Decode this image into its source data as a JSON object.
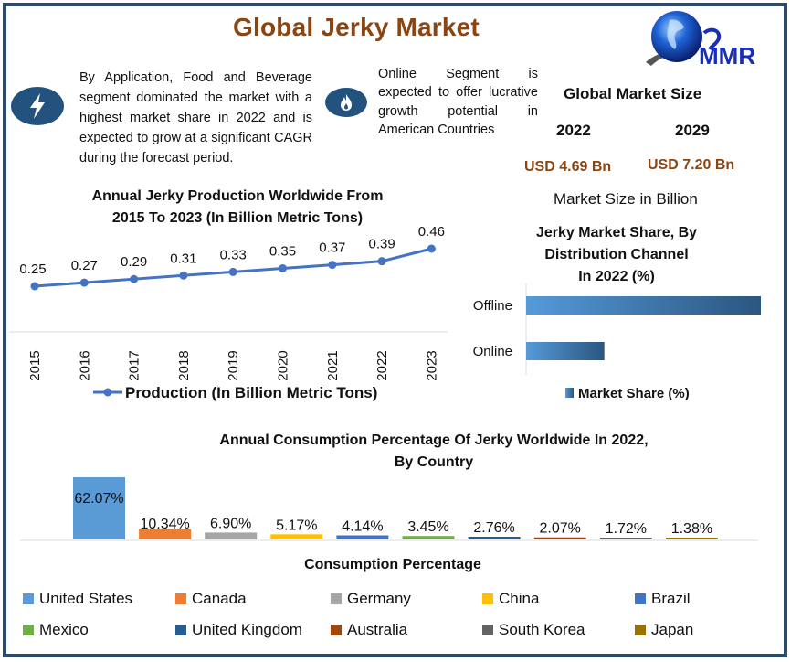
{
  "header": {
    "title": "Global Jerky Market",
    "logo_text": "MMR"
  },
  "highlights": [
    {
      "icon": "lightning-bolt-icon",
      "text": "By Application, Food and Beverage segment dominated the market with a highest market share in 2022 and is expected to grow at a significant CAGR during the forecast period."
    },
    {
      "icon": "flame-icon",
      "text": "Online Segment is expected to offer lucrative growth potential in American Countries"
    }
  ],
  "market_size": {
    "title": "Global Market Size",
    "years": [
      "2022",
      "2029"
    ],
    "values": [
      "USD 4.69 Bn",
      "USD 7.20 Bn"
    ],
    "caption": "Market Size in Billion"
  },
  "colors": {
    "frame": "#2a4a6e",
    "title": "#8b4513",
    "icon_bg": "#24527e",
    "line": "#4472c4"
  },
  "chart_data": [
    {
      "type": "line",
      "title": "Annual Jerky Production Worldwide From 2015 To 2023 (In Billion Metric Tons)",
      "title_lines": [
        "Annual Jerky Production Worldwide From",
        "2015 To 2023 (In Billion Metric Tons)"
      ],
      "categories": [
        "2015",
        "2016",
        "2017",
        "2018",
        "2019",
        "2020",
        "2021",
        "2022",
        "2023"
      ],
      "series": [
        {
          "name": "Production (In Billion Metric Tons)",
          "values": [
            0.25,
            0.27,
            0.29,
            0.31,
            0.33,
            0.35,
            0.37,
            0.39,
            0.46
          ],
          "labels": [
            "0.25",
            "0.27",
            "0.29",
            "0.31",
            "0.33",
            "0.35",
            "0.37",
            "0.39",
            "0.46"
          ]
        }
      ],
      "legend": "bottom",
      "ylim": [
        0,
        0.5
      ]
    },
    {
      "type": "bar",
      "orientation": "horizontal",
      "title": "Jerky Market Share, By Distribution Channel In 2022 (%)",
      "title_lines": [
        "Jerky Market Share, By",
        "Distribution Channel",
        "In 2022 (%)"
      ],
      "categories": [
        "Offline",
        "Online"
      ],
      "series": [
        {
          "name": "Market Share (%)",
          "values": [
            75,
            25
          ]
        }
      ],
      "legend": "bottom"
    },
    {
      "type": "bar",
      "title": "Annual Consumption Percentage Of Jerky Worldwide In 2022, By Country",
      "title_lines": [
        "Annual Consumption Percentage Of Jerky Worldwide In 2022,",
        "By Country"
      ],
      "xlabel": "Consumption Percentage",
      "categories": [
        "United States",
        "Canada",
        "Germany",
        "China",
        "Brazil",
        "Mexico",
        "United Kingdom",
        "Australia",
        "South Korea",
        "Japan"
      ],
      "values": [
        62.07,
        10.34,
        6.9,
        5.17,
        4.14,
        3.45,
        2.76,
        2.07,
        1.72,
        1.38
      ],
      "labels": [
        "62.07%",
        "10.34%",
        "6.90%",
        "5.17%",
        "4.14%",
        "3.45%",
        "2.76%",
        "2.07%",
        "1.72%",
        "1.38%"
      ],
      "colors": [
        "#5b9bd5",
        "#ed7d31",
        "#a5a5a5",
        "#ffc000",
        "#4472c4",
        "#70ad47",
        "#255e91",
        "#9e480e",
        "#636363",
        "#997300"
      ],
      "legend": "bottom"
    }
  ]
}
